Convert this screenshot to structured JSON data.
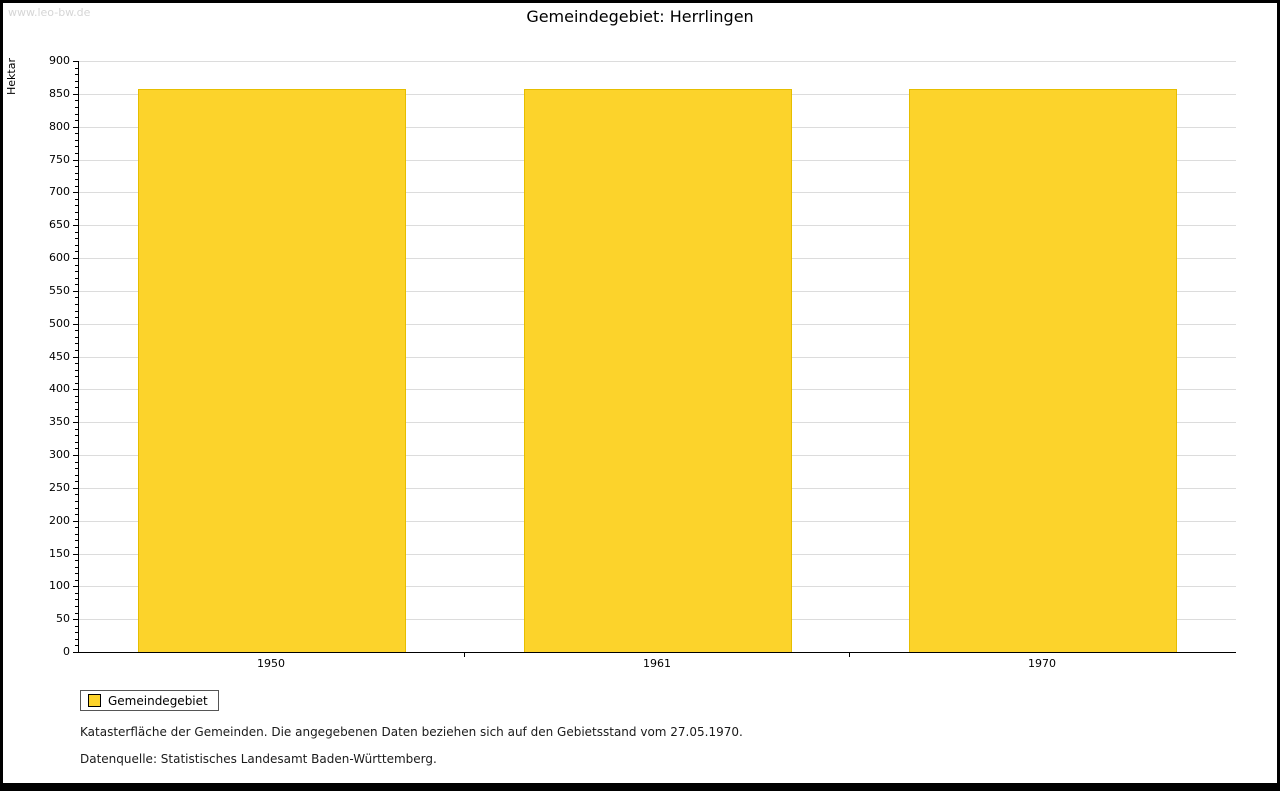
{
  "watermark": "www.leo-bw.de",
  "legend": {
    "label": "Gemeindegebiet"
  },
  "footer": {
    "line1": "Katasterfläche der Gemeinden. Die angegebenen Daten beziehen sich auf den Gebietsstand vom 27.05.1970.",
    "line2": "Datenquelle: Statistisches Landesamt Baden-Württemberg."
  },
  "chart_data": {
    "type": "bar",
    "title": "Gemeindegebiet: Herrlingen",
    "categories": [
      "1950",
      "1961",
      "1970"
    ],
    "values": [
      857,
      857,
      857
    ],
    "series_name": "Gemeindegebiet",
    "xlabel": "",
    "ylabel": "Hektar",
    "ylim": [
      0,
      900
    ],
    "ytick_step": 50,
    "minor_tick_step": 10,
    "grid": "horizontal",
    "legend_position": "bottom-left",
    "bar_color": "#fcd32b",
    "bar_border_color": "#e6be00"
  }
}
